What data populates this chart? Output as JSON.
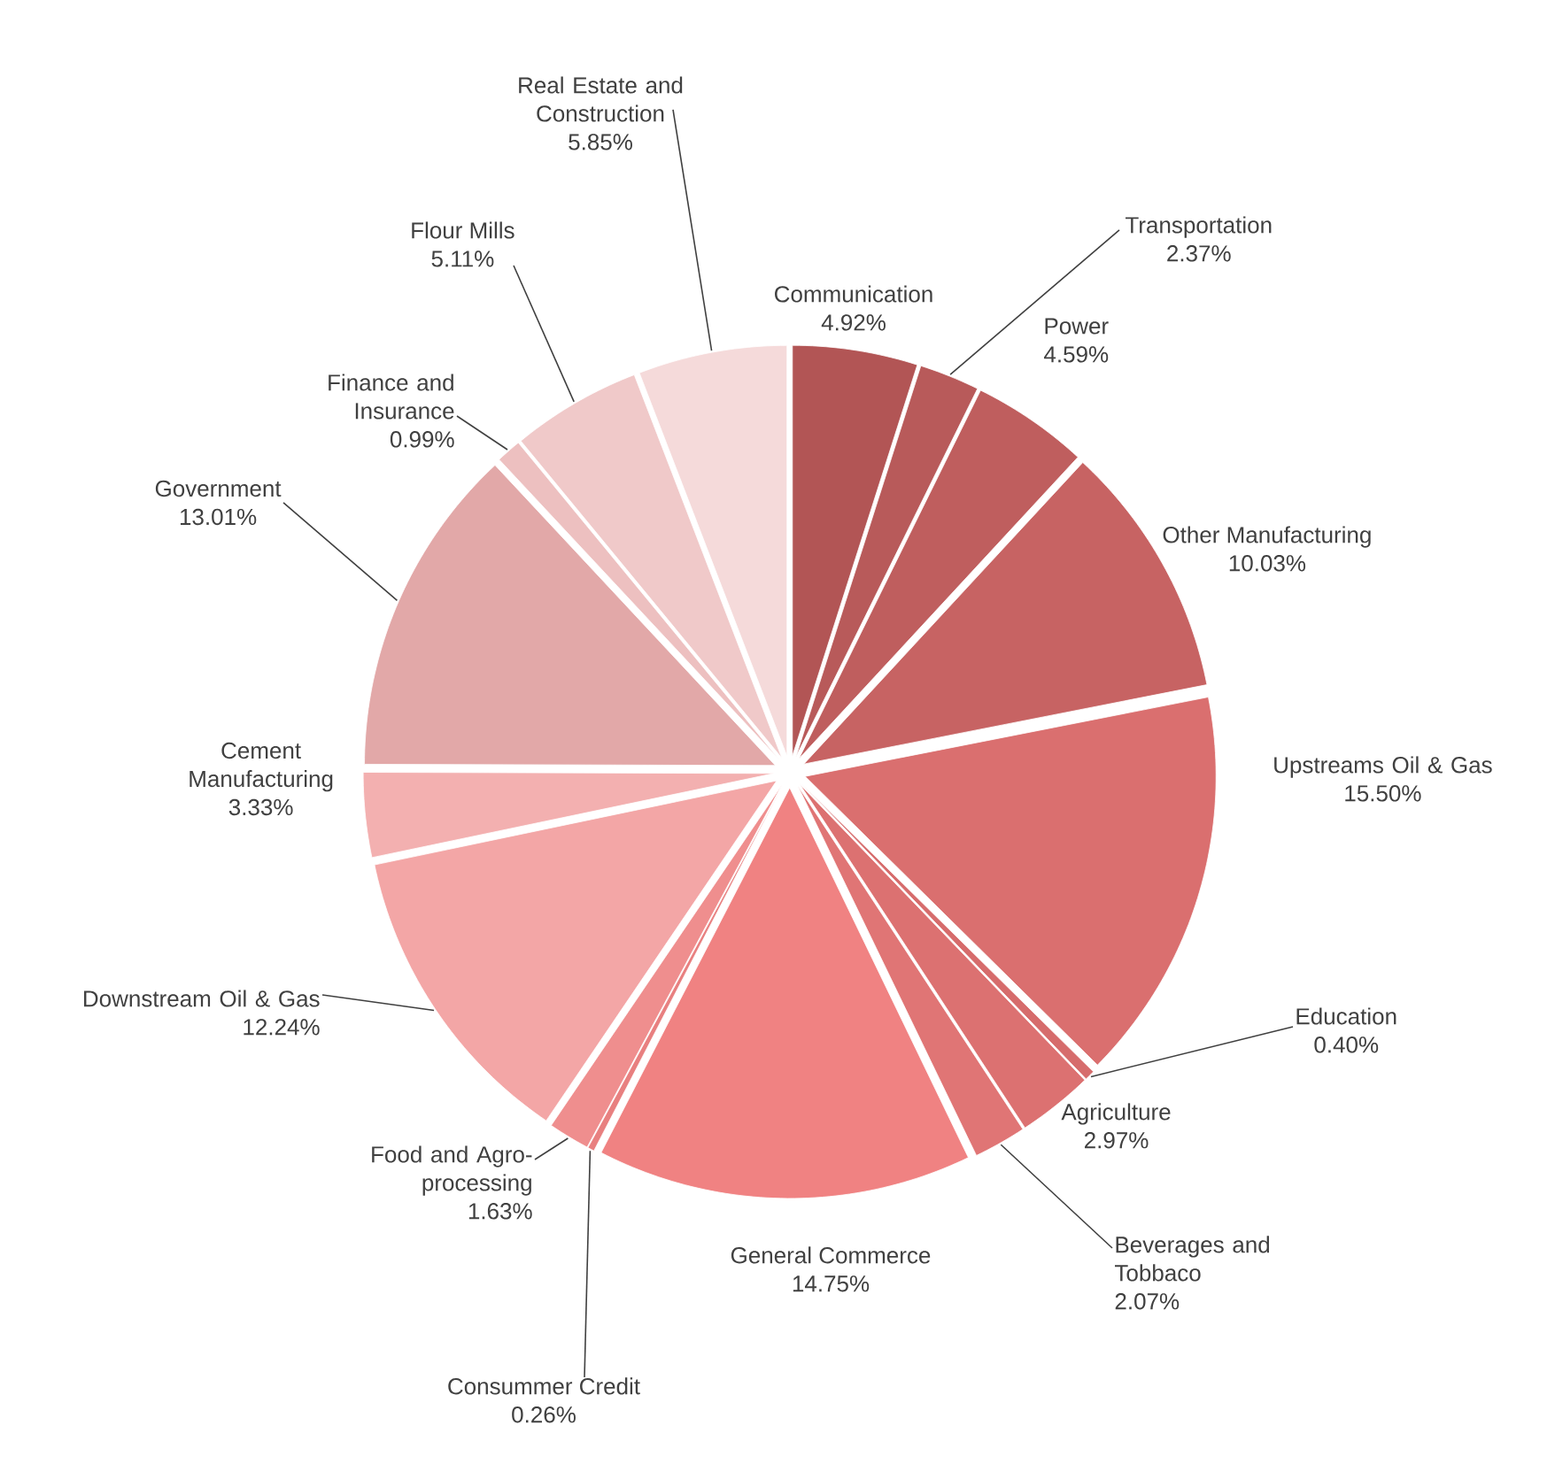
{
  "chart_data": {
    "type": "pie",
    "categories": [
      "Communication",
      "Transportation",
      "Power",
      "Other Manufacturing",
      "Upstreams Oil & Gas",
      "Education",
      "Agriculture",
      "Beverages and Tobbaco",
      "General Commerce",
      "Consummer Credit",
      "Food and Agro-processing",
      "Downstream Oil & Gas",
      "Cement Manufacturing",
      "Government",
      "Finance and Insurance",
      "Flour Mills",
      "Real Estate and Construction"
    ],
    "values": [
      4.92,
      2.37,
      4.59,
      10.03,
      15.5,
      0.4,
      2.97,
      2.07,
      14.75,
      0.26,
      1.63,
      12.24,
      3.33,
      13.01,
      0.99,
      5.11,
      5.85
    ],
    "value_labels": [
      "4.92%",
      "2.37%",
      "4.59%",
      "10.03%",
      "15.50%",
      "0.40%",
      "2.97%",
      "2.07%",
      "14.75%",
      "0.26%",
      "1.63%",
      "12.24%",
      "3.33%",
      "13.01%",
      "0.99%",
      "5.11%",
      "5.85%"
    ],
    "colors": [
      "#b25555",
      "#b85a5a",
      "#bf5e5e",
      "#c76363",
      "#da6f6f",
      "#d66c6c",
      "#dc7171",
      "#e07575",
      "#f08282",
      "#e88080",
      "#ef8e8e",
      "#f3a6a6",
      "#f3b0b0",
      "#e2a8a8",
      "#edc0c0",
      "#f0c9c9",
      "#f5dada"
    ]
  }
}
